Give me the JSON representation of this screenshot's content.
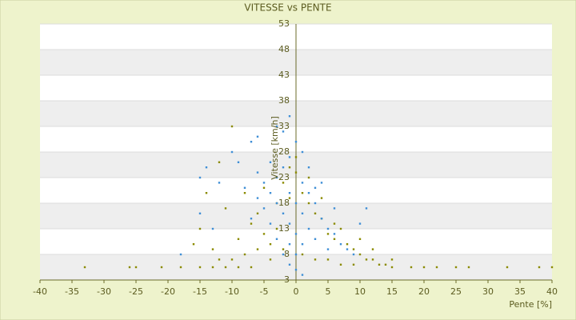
{
  "chart_data": {
    "type": "scatter",
    "title": "VITESSE vs PENTE",
    "x_label": "Pente [%]",
    "y_label": "Vitesse [km/h]",
    "xlim": [
      -40,
      40
    ],
    "xticks": [
      -40,
      -35,
      -30,
      -25,
      -20,
      -15,
      -10,
      -5,
      0,
      5,
      10,
      15,
      20,
      25,
      30,
      35,
      40
    ],
    "ylim": [
      3,
      53
    ],
    "yticks": [
      3,
      8,
      13,
      18,
      23,
      28,
      33,
      38,
      43,
      48,
      53
    ],
    "grid": true,
    "series": [
      {
        "color": "#8a8a00",
        "x": [
          -33,
          -26,
          -25,
          -21,
          -18,
          -15,
          -13,
          -11,
          -9,
          -7,
          15,
          18,
          20,
          22,
          25,
          27,
          33,
          38,
          40,
          -10,
          -12,
          -14,
          -11,
          -8,
          -6,
          -5,
          -4,
          -3,
          -2,
          -1,
          0,
          1,
          2,
          3,
          4,
          5,
          6,
          7,
          8,
          9,
          10,
          11,
          12,
          13,
          14,
          15,
          -12,
          -10,
          -8,
          -6,
          -4,
          -2,
          1,
          3,
          5,
          7,
          9,
          -16,
          -15,
          -13,
          -9,
          -7,
          6,
          4,
          2,
          -1,
          0,
          10,
          12,
          -3,
          -5
        ],
        "values": [
          5.5,
          5.5,
          5.5,
          5.5,
          5.5,
          5.5,
          5.5,
          5.5,
          5.5,
          5.5,
          5.5,
          5.5,
          5.5,
          5.5,
          5.5,
          5.5,
          5.5,
          5.5,
          5.5,
          33,
          26,
          20,
          17,
          20,
          16,
          12,
          10,
          13,
          22,
          25,
          24,
          20,
          18,
          16,
          15,
          12,
          11,
          13,
          10,
          9,
          8,
          7,
          7,
          6,
          6,
          7,
          7,
          7,
          8,
          9,
          7,
          9,
          8,
          7,
          7,
          6,
          6,
          10,
          13,
          9,
          11,
          14,
          14,
          19,
          23,
          19,
          27,
          11,
          9,
          18,
          21
        ]
      },
      {
        "color": "#3f8fd6",
        "x": [
          -1,
          -2,
          -3,
          -6,
          -7,
          -9,
          -10,
          -14,
          -15,
          -12,
          -15,
          -18,
          -13,
          -6,
          -5,
          -4,
          -3,
          -2,
          -1,
          0,
          1,
          2,
          3,
          4,
          5,
          6,
          7,
          8,
          9,
          -1,
          0,
          1,
          -2,
          -3,
          -4,
          11,
          10,
          4,
          2,
          1,
          0,
          -1,
          -2,
          -3,
          -4,
          -5,
          -6,
          -7,
          -8,
          0,
          1,
          2,
          3,
          5,
          0,
          -1,
          1,
          -1,
          3,
          6
        ],
        "values": [
          35,
          32,
          33,
          31,
          30,
          26,
          28,
          25,
          23,
          22,
          16,
          8,
          13,
          24,
          22,
          20,
          18,
          16,
          14,
          12,
          10,
          20,
          18,
          15,
          13,
          12,
          10,
          9,
          8,
          6,
          5,
          4,
          8,
          11,
          14,
          17,
          14,
          22,
          25,
          28,
          30,
          27,
          25,
          23,
          26,
          17,
          19,
          15,
          21,
          18,
          16,
          13,
          11,
          9,
          8,
          10,
          22,
          20,
          21,
          17
        ]
      }
    ]
  }
}
